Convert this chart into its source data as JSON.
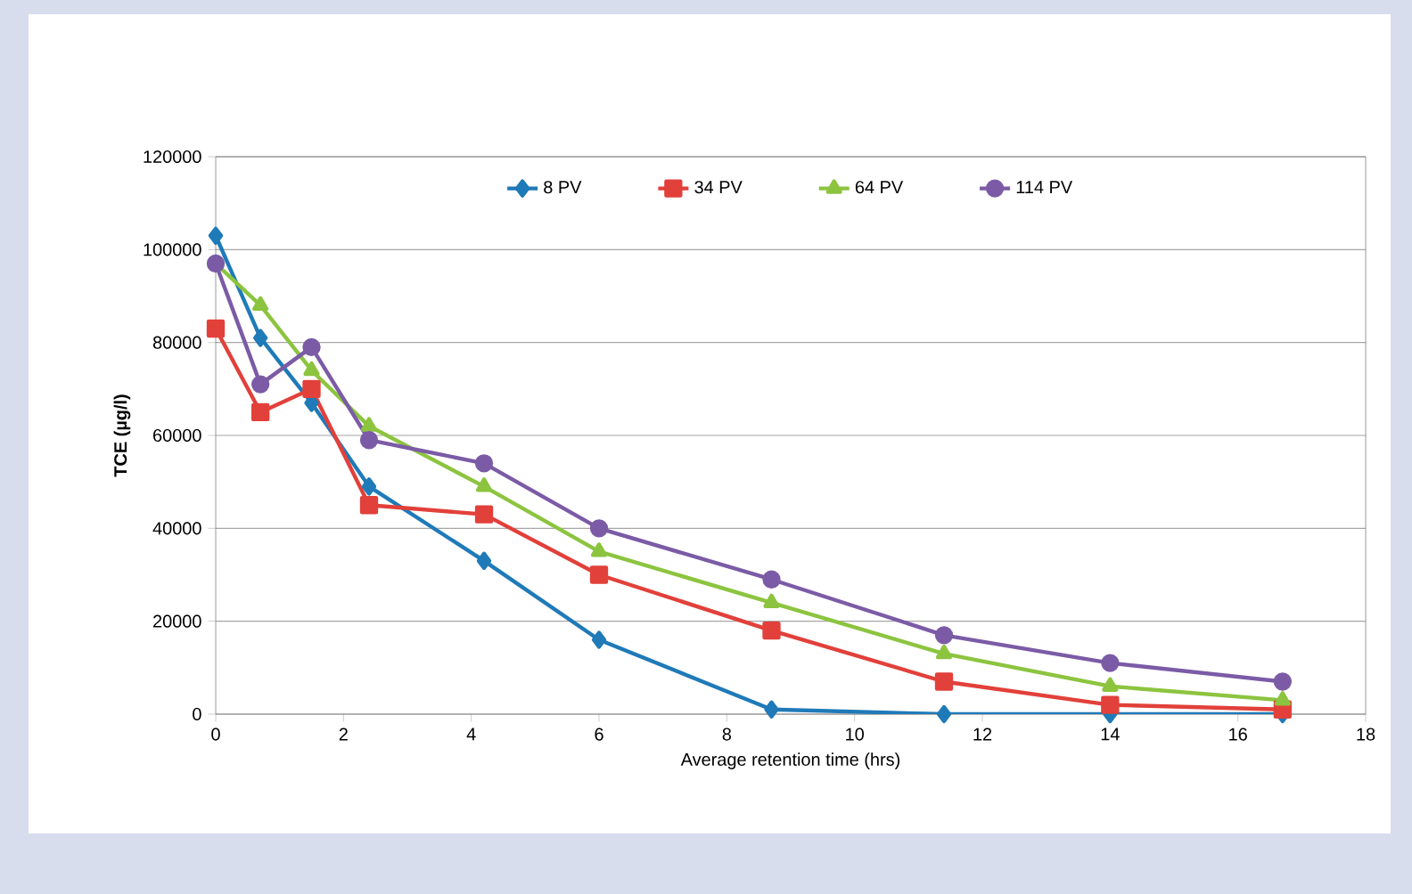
{
  "chart_data": {
    "type": "line",
    "xlabel": "Average retention time (hrs)",
    "ylabel": "TCE (µg/l)",
    "x": [
      0,
      0.7,
      1.5,
      2.4,
      4.2,
      6,
      8.7,
      11.4,
      14,
      16.7
    ],
    "series": [
      {
        "name": "8 PV",
        "color": "#1f7ab8",
        "marker": "diamond",
        "values": [
          103000,
          81000,
          67000,
          49000,
          33000,
          16000,
          1000,
          0,
          0,
          0
        ]
      },
      {
        "name": "34 PV",
        "color": "#e2403a",
        "marker": "square",
        "values": [
          83000,
          65000,
          70000,
          45000,
          43000,
          30000,
          18000,
          7000,
          2000,
          1000
        ]
      },
      {
        "name": "64 PV",
        "color": "#8cc43f",
        "marker": "triangle",
        "values": [
          97000,
          88000,
          74000,
          62000,
          49000,
          35000,
          24000,
          13000,
          6000,
          3000
        ]
      },
      {
        "name": "114 PV",
        "color": "#7b5ba6",
        "marker": "circle",
        "values": [
          97000,
          71000,
          79000,
          59000,
          54000,
          40000,
          29000,
          17000,
          11000,
          7000
        ]
      }
    ],
    "xlim": [
      0,
      18
    ],
    "xticks": [
      0,
      2,
      4,
      6,
      8,
      10,
      12,
      14,
      16,
      18
    ],
    "ylim": [
      0,
      120000
    ],
    "yticks": [
      0,
      20000,
      40000,
      60000,
      80000,
      100000,
      120000
    ],
    "grid": "y",
    "legend": "top",
    "line_style": "solid"
  }
}
